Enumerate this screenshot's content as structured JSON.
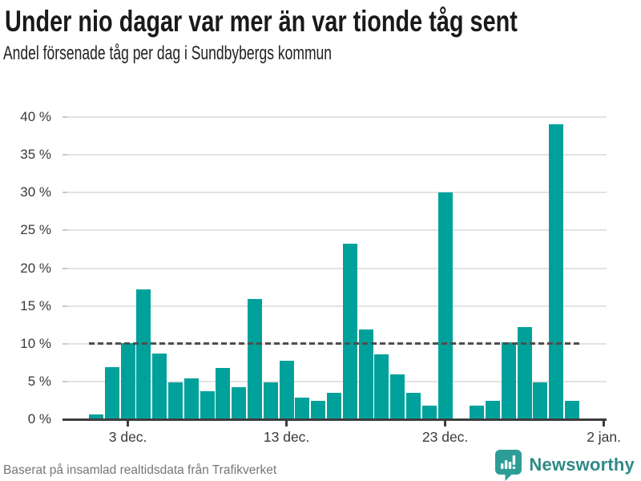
{
  "header": {
    "title": "Under nio dagar var mer än var tionde tåg sent",
    "subtitle": "Andel försenade tåg per dag i Sundbybergs kommun"
  },
  "chart_data": {
    "type": "bar",
    "title": "Under nio dagar var mer än var tionde tåg sent",
    "subtitle": "Andel försenade tåg per dag i Sundbybergs kommun",
    "unit": "%",
    "categories": [
      "1 dec.",
      "2 dec.",
      "3 dec.",
      "4 dec.",
      "5 dec.",
      "6 dec.",
      "7 dec.",
      "8 dec.",
      "9 dec.",
      "10 dec.",
      "11 dec.",
      "12 dec.",
      "13 dec.",
      "14 dec.",
      "15 dec.",
      "16 dec.",
      "17 dec.",
      "18 dec.",
      "19 dec.",
      "20 dec.",
      "21 dec.",
      "22 dec.",
      "23 dec.",
      "24 dec.",
      "25 dec.",
      "26 dec.",
      "27 dec.",
      "28 dec.",
      "29 dec.",
      "30 dec.",
      "31 dec."
    ],
    "values": [
      0.6,
      6.9,
      10.1,
      17.2,
      8.7,
      4.9,
      5.4,
      3.7,
      6.8,
      4.2,
      15.9,
      4.9,
      7.7,
      2.9,
      2.4,
      3.5,
      23.2,
      11.9,
      8.6,
      5.9,
      3.5,
      1.8,
      30,
      null,
      1.8,
      2.4,
      10.2,
      12.2,
      4.9,
      39,
      2.4
    ],
    "ylim": [
      0,
      40
    ],
    "ytick_labels": [
      "0 %",
      "5 %",
      "10 %",
      "15 %",
      "20 %",
      "25 %",
      "30 %",
      "35 %",
      "40 %"
    ],
    "ytick_step": 5,
    "xticks": [
      {
        "label": "3 dec.",
        "index": 2
      },
      {
        "label": "13 dec.",
        "index": 12
      },
      {
        "label": "23 dec.",
        "index": 22
      },
      {
        "label": "2 jan.",
        "index": 32
      }
    ],
    "reference_line": {
      "value": 10,
      "style": "dashed",
      "color": "#4e4e4e"
    },
    "bar_color": "#00A19A",
    "grid": true,
    "legend_position": "none"
  },
  "footer": {
    "source": "Baserat på insamlad realtidsdata från Trafikverket",
    "brand": "Newsworthy"
  },
  "colors": {
    "accent_teal": "#00A19A",
    "brand_bubble": "#2d9e96",
    "brand_text": "#2e8a85",
    "gridline": "#e3e3e3",
    "axis": "#3d3d3d",
    "title_text": "#1a1a1a",
    "muted_text": "#767676"
  }
}
